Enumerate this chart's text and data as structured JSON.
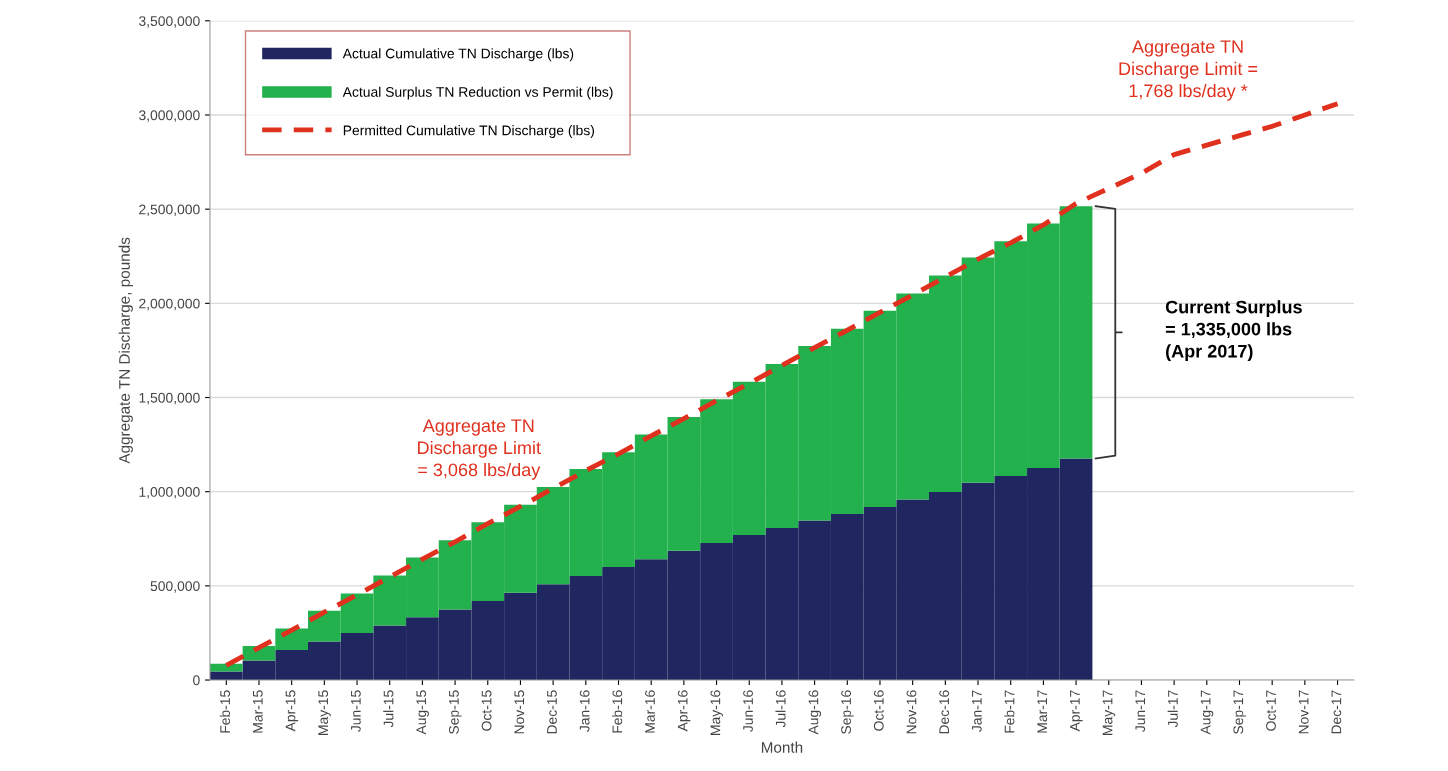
{
  "chart_data": {
    "type": "bar",
    "stacked": true,
    "xlabel": "Month",
    "ylabel": "Aggregate TN Discharge, pounds",
    "categories": [
      "Feb-15",
      "Mar-15",
      "Apr-15",
      "May-15",
      "Jun-15",
      "Jul-15",
      "Aug-15",
      "Sep-15",
      "Oct-15",
      "Nov-15",
      "Dec-15",
      "Jan-16",
      "Feb-16",
      "Mar-16",
      "Apr-16",
      "May-16",
      "Jun-16",
      "Jul-16",
      "Aug-16",
      "Sep-16",
      "Oct-16",
      "Nov-16",
      "Dec-16",
      "Jan-17",
      "Feb-17",
      "Mar-17",
      "Apr-17",
      "May-17",
      "Jun-17",
      "Jul-17",
      "Aug-17",
      "Sep-17",
      "Oct-17",
      "Nov-17",
      "Dec-17"
    ],
    "series": [
      {
        "name": "Actual Cumulative TN Discharge (lbs)",
        "color": "#1f2660",
        "values": [
          45000,
          103000,
          160000,
          205000,
          250000,
          290000,
          333000,
          374000,
          419000,
          463000,
          508000,
          552000,
          600000,
          641000,
          686000,
          727000,
          770000,
          807000,
          847000,
          882000,
          918000,
          959000,
          998000,
          1048000,
          1083000,
          1126000,
          1176000,
          null,
          null,
          null,
          null,
          null,
          null,
          null,
          null
        ]
      },
      {
        "name": "Actual Surplus TN Reduction vs Permit (lbs)",
        "color": "#22b14c",
        "values": [
          41000,
          78000,
          113000,
          163000,
          210000,
          265000,
          317000,
          368000,
          419000,
          467000,
          517000,
          568000,
          609000,
          663000,
          710000,
          764000,
          813000,
          871000,
          926000,
          983000,
          1042000,
          1093000,
          1150000,
          1195000,
          1246000,
          1298000,
          1340000,
          null,
          null,
          null,
          null,
          null,
          null,
          null,
          null
        ]
      },
      {
        "name": "Permitted Cumulative TN Discharge (lbs)",
        "type": "line",
        "line_style": "dashed",
        "color": "#e0301e",
        "values": [
          78000,
          172000,
          265000,
          360000,
          452000,
          547000,
          642000,
          734000,
          830000,
          922000,
          1017000,
          1112000,
          1201000,
          1296000,
          1388000,
          1483000,
          1575000,
          1670000,
          1765000,
          1857000,
          1952000,
          2044000,
          2140000,
          2235000,
          2321000,
          2416000,
          2530000,
          2610000,
          2690000,
          2790000,
          2840000,
          2890000,
          2940000,
          3000000,
          3060000
        ]
      }
    ],
    "ylim": [
      0,
      3500000
    ],
    "yticks": [
      0,
      {
        "value": 500000,
        "label": "500,000"
      },
      {
        "value": 1000000,
        "label": "1,000,000"
      },
      {
        "value": 1500000,
        "label": "1,500,000"
      },
      {
        "value": 2000000,
        "label": "2,000,000"
      },
      {
        "value": 2500000,
        "label": "2,500,000"
      },
      {
        "value": 3000000,
        "label": "3,000,000"
      },
      {
        "value": 3500000,
        "label": "3,500,000"
      }
    ],
    "grid": "y",
    "legend": "top left",
    "annotations": [
      "Aggregate TN\nDischarge Limit\n= 3,068 lbs/day",
      "Aggregate TN\nDischarge Limit =\n1,768 lbs/day *",
      "Current Surplus\n= 1,335,000 lbs\n(Apr 2017)"
    ]
  }
}
